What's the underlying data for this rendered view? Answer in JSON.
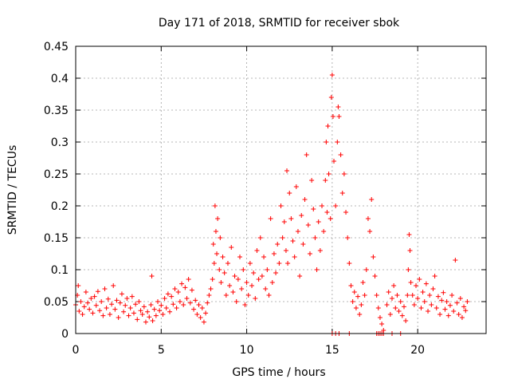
{
  "chart_data": {
    "type": "scatter",
    "title": "Day 171 of 2018, SRMTID for receiver sbok",
    "xlabel": "GPS time / hours",
    "ylabel": "SRMTID / TECUs",
    "xlim": [
      0,
      24
    ],
    "ylim": [
      0,
      0.45
    ],
    "xticks": [
      0,
      5,
      10,
      15,
      20
    ],
    "xtick_labels": [
      "0",
      "5",
      "10",
      "15",
      "20"
    ],
    "yticks": [
      0,
      0.05,
      0.1,
      0.15,
      0.2,
      0.25,
      0.3,
      0.35,
      0.4,
      0.45
    ],
    "ytick_labels": [
      "0",
      "0.05",
      "0.1",
      "0.15",
      "0.2",
      "0.25",
      "0.3",
      "0.35",
      "0.4",
      "0.45"
    ],
    "grid": true,
    "marker": "+",
    "color": "#ff0000",
    "series": [
      {
        "name": "SRMTID",
        "points": [
          [
            0.0,
            0.045
          ],
          [
            0.1,
            0.06
          ],
          [
            0.15,
            0.075
          ],
          [
            0.2,
            0.035
          ],
          [
            0.3,
            0.05
          ],
          [
            0.4,
            0.03
          ],
          [
            0.5,
            0.042
          ],
          [
            0.6,
            0.065
          ],
          [
            0.7,
            0.048
          ],
          [
            0.8,
            0.038
          ],
          [
            0.9,
            0.055
          ],
          [
            1.0,
            0.032
          ],
          [
            1.1,
            0.058
          ],
          [
            1.2,
            0.044
          ],
          [
            1.3,
            0.066
          ],
          [
            1.4,
            0.036
          ],
          [
            1.5,
            0.05
          ],
          [
            1.6,
            0.028
          ],
          [
            1.7,
            0.07
          ],
          [
            1.8,
            0.04
          ],
          [
            1.9,
            0.054
          ],
          [
            2.0,
            0.03
          ],
          [
            2.1,
            0.046
          ],
          [
            2.2,
            0.075
          ],
          [
            2.3,
            0.038
          ],
          [
            2.4,
            0.052
          ],
          [
            2.5,
            0.025
          ],
          [
            2.6,
            0.048
          ],
          [
            2.7,
            0.062
          ],
          [
            2.8,
            0.034
          ],
          [
            2.9,
            0.044
          ],
          [
            3.0,
            0.055
          ],
          [
            3.1,
            0.028
          ],
          [
            3.2,
            0.04
          ],
          [
            3.3,
            0.058
          ],
          [
            3.4,
            0.032
          ],
          [
            3.5,
            0.046
          ],
          [
            3.6,
            0.022
          ],
          [
            3.7,
            0.05
          ],
          [
            3.8,
            0.036
          ],
          [
            3.9,
            0.03
          ],
          [
            4.0,
            0.042
          ],
          [
            4.1,
            0.018
          ],
          [
            4.2,
            0.034
          ],
          [
            4.3,
            0.026
          ],
          [
            4.4,
            0.045
          ],
          [
            4.45,
            0.09
          ],
          [
            4.5,
            0.02
          ],
          [
            4.6,
            0.038
          ],
          [
            4.7,
            0.028
          ],
          [
            4.8,
            0.05
          ],
          [
            4.9,
            0.036
          ],
          [
            5.0,
            0.044
          ],
          [
            5.1,
            0.03
          ],
          [
            5.2,
            0.055
          ],
          [
            5.3,
            0.04
          ],
          [
            5.4,
            0.062
          ],
          [
            5.5,
            0.034
          ],
          [
            5.6,
            0.058
          ],
          [
            5.7,
            0.046
          ],
          [
            5.8,
            0.07
          ],
          [
            5.9,
            0.04
          ],
          [
            6.0,
            0.065
          ],
          [
            6.1,
            0.05
          ],
          [
            6.2,
            0.078
          ],
          [
            6.3,
            0.045
          ],
          [
            6.4,
            0.072
          ],
          [
            6.5,
            0.055
          ],
          [
            6.6,
            0.085
          ],
          [
            6.7,
            0.048
          ],
          [
            6.8,
            0.068
          ],
          [
            6.9,
            0.038
          ],
          [
            7.0,
            0.052
          ],
          [
            7.1,
            0.03
          ],
          [
            7.2,
            0.045
          ],
          [
            7.3,
            0.025
          ],
          [
            7.4,
            0.04
          ],
          [
            7.5,
            0.018
          ],
          [
            7.6,
            0.032
          ],
          [
            7.7,
            0.048
          ],
          [
            7.8,
            0.06
          ],
          [
            7.9,
            0.07
          ],
          [
            8.0,
            0.085
          ],
          [
            8.05,
            0.14
          ],
          [
            8.1,
            0.11
          ],
          [
            8.15,
            0.2
          ],
          [
            8.2,
            0.16
          ],
          [
            8.25,
            0.125
          ],
          [
            8.3,
            0.18
          ],
          [
            8.4,
            0.1
          ],
          [
            8.45,
            0.15
          ],
          [
            8.5,
            0.08
          ],
          [
            8.6,
            0.12
          ],
          [
            8.7,
            0.095
          ],
          [
            8.8,
            0.06
          ],
          [
            8.9,
            0.11
          ],
          [
            9.0,
            0.075
          ],
          [
            9.1,
            0.135
          ],
          [
            9.2,
            0.065
          ],
          [
            9.3,
            0.09
          ],
          [
            9.4,
            0.05
          ],
          [
            9.5,
            0.085
          ],
          [
            9.6,
            0.12
          ],
          [
            9.7,
            0.07
          ],
          [
            9.8,
            0.1
          ],
          [
            9.9,
            0.045
          ],
          [
            10.0,
            0.08
          ],
          [
            10.1,
            0.06
          ],
          [
            10.2,
            0.11
          ],
          [
            10.3,
            0.075
          ],
          [
            10.4,
            0.095
          ],
          [
            10.5,
            0.055
          ],
          [
            10.6,
            0.13
          ],
          [
            10.7,
            0.085
          ],
          [
            10.8,
            0.15
          ],
          [
            10.9,
            0.09
          ],
          [
            11.0,
            0.12
          ],
          [
            11.1,
            0.07
          ],
          [
            11.2,
            0.1
          ],
          [
            11.3,
            0.06
          ],
          [
            11.4,
            0.18
          ],
          [
            11.5,
            0.08
          ],
          [
            11.6,
            0.125
          ],
          [
            11.7,
            0.095
          ],
          [
            11.8,
            0.14
          ],
          [
            11.9,
            0.11
          ],
          [
            12.0,
            0.2
          ],
          [
            12.1,
            0.15
          ],
          [
            12.2,
            0.175
          ],
          [
            12.3,
            0.13
          ],
          [
            12.35,
            0.255
          ],
          [
            12.4,
            0.11
          ],
          [
            12.5,
            0.22
          ],
          [
            12.6,
            0.18
          ],
          [
            12.7,
            0.145
          ],
          [
            12.8,
            0.12
          ],
          [
            12.9,
            0.23
          ],
          [
            13.0,
            0.16
          ],
          [
            13.1,
            0.09
          ],
          [
            13.2,
            0.185
          ],
          [
            13.3,
            0.14
          ],
          [
            13.4,
            0.21
          ],
          [
            13.5,
            0.28
          ],
          [
            13.6,
            0.17
          ],
          [
            13.7,
            0.125
          ],
          [
            13.8,
            0.24
          ],
          [
            13.9,
            0.195
          ],
          [
            14.0,
            0.15
          ],
          [
            14.1,
            0.1
          ],
          [
            14.2,
            0.175
          ],
          [
            14.3,
            0.13
          ],
          [
            14.4,
            0.2
          ],
          [
            14.5,
            0.16
          ],
          [
            14.6,
            0.24
          ],
          [
            14.65,
            0.3
          ],
          [
            14.7,
            0.19
          ],
          [
            14.75,
            0.325
          ],
          [
            14.8,
            0.25
          ],
          [
            14.9,
            0.18
          ],
          [
            14.95,
            0.37
          ],
          [
            15.0,
            0.405
          ],
          [
            15.05,
            0.34
          ],
          [
            15.1,
            0.27
          ],
          [
            15.2,
            0.2
          ],
          [
            15.3,
            0.3
          ],
          [
            15.35,
            0.355
          ],
          [
            15.4,
            0.34
          ],
          [
            15.5,
            0.28
          ],
          [
            15.6,
            0.22
          ],
          [
            15.7,
            0.25
          ],
          [
            15.8,
            0.19
          ],
          [
            15.9,
            0.15
          ],
          [
            16.0,
            0.11
          ],
          [
            16.1,
            0.075
          ],
          [
            16.2,
            0.05
          ],
          [
            16.3,
            0.065
          ],
          [
            16.4,
            0.04
          ],
          [
            16.5,
            0.058
          ],
          [
            16.6,
            0.03
          ],
          [
            16.7,
            0.045
          ],
          [
            16.8,
            0.08
          ],
          [
            16.9,
            0.06
          ],
          [
            17.0,
            0.1
          ],
          [
            17.1,
            0.18
          ],
          [
            17.2,
            0.16
          ],
          [
            17.3,
            0.21
          ],
          [
            17.4,
            0.12
          ],
          [
            17.5,
            0.09
          ],
          [
            17.6,
            0.06
          ],
          [
            17.7,
            0.04
          ],
          [
            17.8,
            0.025
          ],
          [
            17.9,
            0.015
          ],
          [
            18.0,
            0.005
          ],
          [
            18.2,
            0.045
          ],
          [
            18.3,
            0.065
          ],
          [
            18.4,
            0.03
          ],
          [
            18.5,
            0.055
          ],
          [
            18.6,
            0.075
          ],
          [
            18.7,
            0.04
          ],
          [
            18.8,
            0.06
          ],
          [
            18.9,
            0.035
          ],
          [
            19.0,
            0.05
          ],
          [
            19.1,
            0.028
          ],
          [
            19.2,
            0.042
          ],
          [
            19.3,
            0.02
          ],
          [
            19.4,
            0.06
          ],
          [
            19.45,
            0.1
          ],
          [
            19.5,
            0.155
          ],
          [
            19.55,
            0.13
          ],
          [
            19.6,
            0.08
          ],
          [
            19.7,
            0.06
          ],
          [
            19.8,
            0.045
          ],
          [
            19.9,
            0.075
          ],
          [
            20.0,
            0.055
          ],
          [
            20.1,
            0.085
          ],
          [
            20.2,
            0.04
          ],
          [
            20.3,
            0.065
          ],
          [
            20.4,
            0.05
          ],
          [
            20.5,
            0.078
          ],
          [
            20.6,
            0.035
          ],
          [
            20.7,
            0.06
          ],
          [
            20.8,
            0.045
          ],
          [
            20.9,
            0.07
          ],
          [
            21.0,
            0.09
          ],
          [
            21.1,
            0.04
          ],
          [
            21.2,
            0.058
          ],
          [
            21.3,
            0.03
          ],
          [
            21.4,
            0.052
          ],
          [
            21.5,
            0.064
          ],
          [
            21.6,
            0.038
          ],
          [
            21.7,
            0.05
          ],
          [
            21.8,
            0.028
          ],
          [
            21.9,
            0.044
          ],
          [
            22.0,
            0.06
          ],
          [
            22.1,
            0.035
          ],
          [
            22.2,
            0.115
          ],
          [
            22.3,
            0.048
          ],
          [
            22.4,
            0.03
          ],
          [
            22.5,
            0.055
          ],
          [
            22.6,
            0.025
          ],
          [
            22.7,
            0.042
          ],
          [
            22.8,
            0.036
          ],
          [
            22.9,
            0.05
          ],
          [
            15.0,
            0.0
          ],
          [
            15.2,
            0.0
          ],
          [
            15.4,
            0.0
          ],
          [
            16.0,
            0.0
          ],
          [
            17.6,
            0.0
          ],
          [
            17.7,
            0.0
          ],
          [
            17.8,
            0.0
          ],
          [
            17.9,
            0.0
          ],
          [
            18.0,
            0.0
          ],
          [
            18.5,
            0.0
          ],
          [
            19.0,
            0.0
          ]
        ]
      }
    ]
  }
}
